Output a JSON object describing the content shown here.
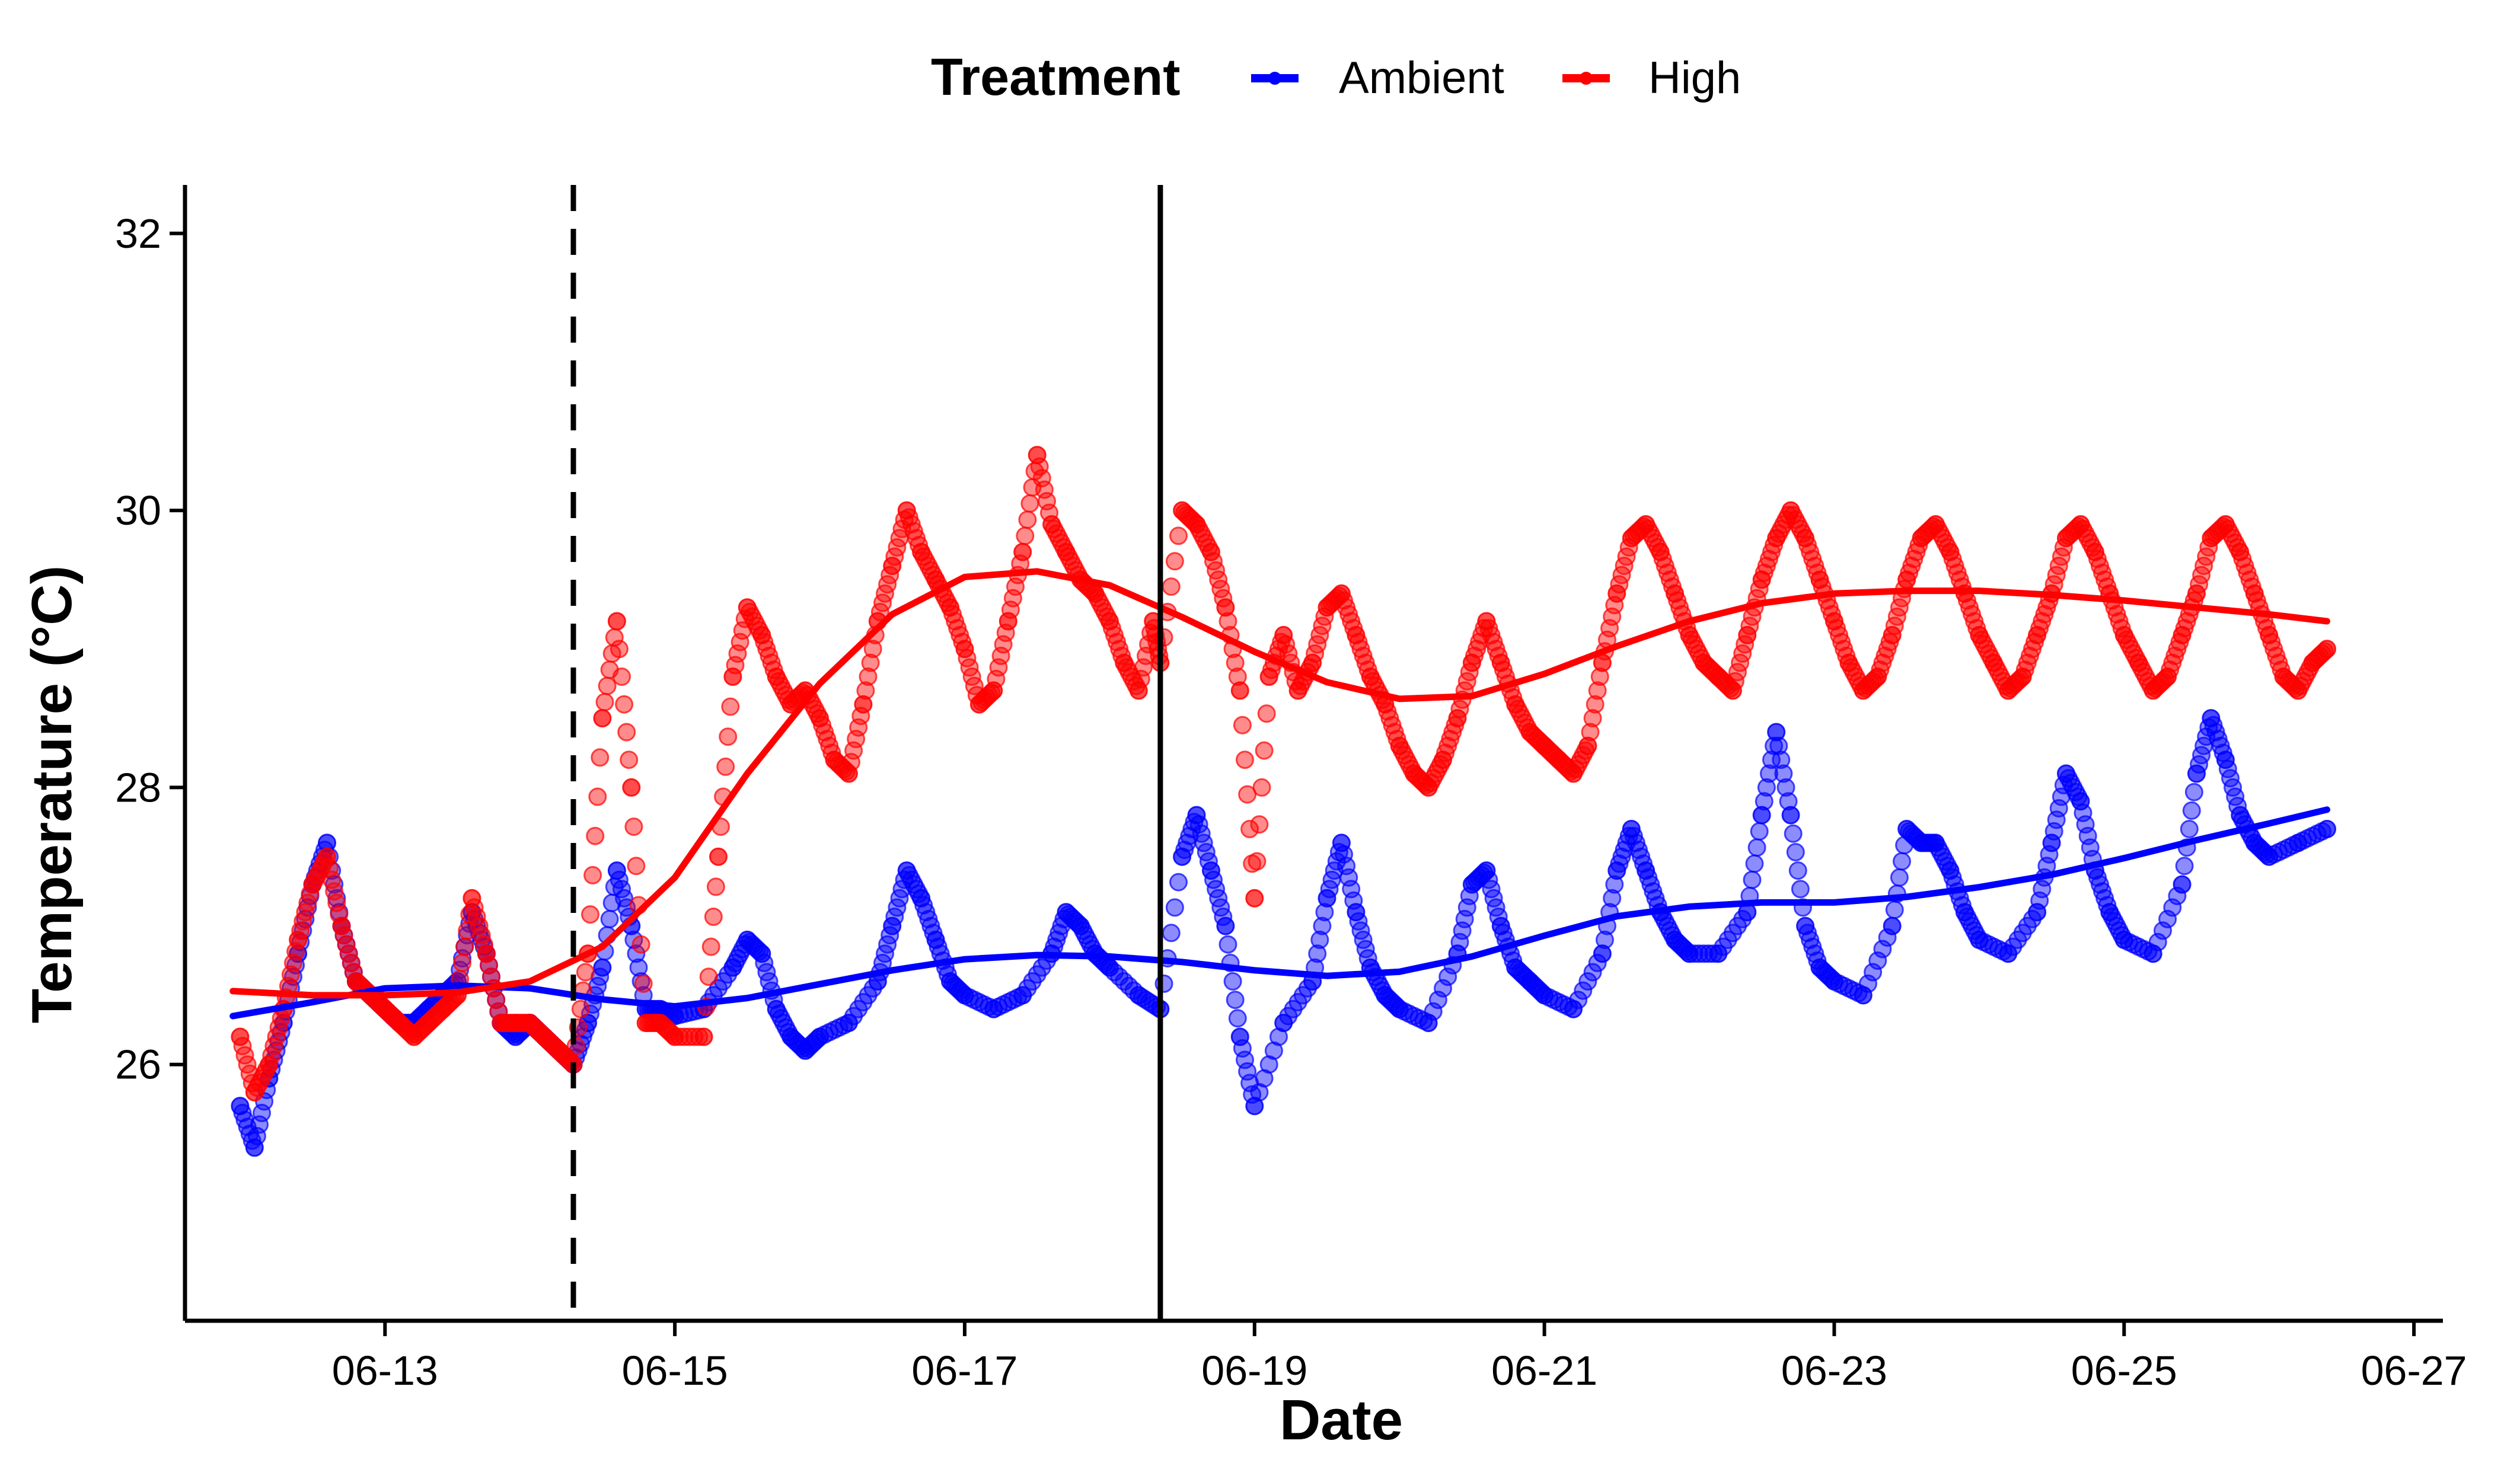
{
  "chart_data": {
    "type": "scatter",
    "title": "",
    "xlabel": "Date",
    "ylabel": "Temperature (°C)",
    "x_unit": "date",
    "xlim": [
      "06-11.62",
      "06-27.2"
    ],
    "ylim": [
      24.15,
      32.35
    ],
    "x_ticks": [
      "06-13",
      "06-15",
      "06-17",
      "06-19",
      "06-21",
      "06-23",
      "06-25",
      "06-27"
    ],
    "y_ticks": [
      26,
      28,
      30,
      32
    ],
    "grid": false,
    "legend": {
      "title": "Treatment",
      "position": "top",
      "entries": [
        "Ambient",
        "High"
      ]
    },
    "reference_lines": [
      {
        "x": "06-14.3",
        "style": "dashed"
      },
      {
        "x": "06-18.35",
        "style": "solid"
      }
    ],
    "series": [
      {
        "name": "Ambient",
        "color": "#0000ff",
        "points_x": [
          "06-12.0",
          "06-12.1",
          "06-12.2",
          "06-12.3",
          "06-12.4",
          "06-12.5",
          "06-12.6",
          "06-12.7",
          "06-12.8",
          "06-12.9",
          "06-13.0",
          "06-13.1",
          "06-13.2",
          "06-13.3",
          "06-13.4",
          "06-13.5",
          "06-13.6",
          "06-13.7",
          "06-13.8",
          "06-13.9",
          "06-14.0",
          "06-14.1",
          "06-14.2",
          "06-14.3",
          "06-14.4",
          "06-14.5",
          "06-14.6",
          "06-14.7",
          "06-14.8",
          "06-14.9",
          "06-15.0",
          "06-15.2",
          "06-15.4",
          "06-15.5",
          "06-15.6",
          "06-15.7",
          "06-15.8",
          "06-15.9",
          "06-16.0",
          "06-16.2",
          "06-16.4",
          "06-16.5",
          "06-16.6",
          "06-16.7",
          "06-16.8",
          "06-16.9",
          "06-17.0",
          "06-17.2",
          "06-17.4",
          "06-17.6",
          "06-17.7",
          "06-17.8",
          "06-17.9",
          "06-18.0",
          "06-18.2",
          "06-18.35",
          "06-18.5",
          "06-18.6",
          "06-18.7",
          "06-18.8",
          "06-18.9",
          "06-19.0",
          "06-19.2",
          "06-19.4",
          "06-19.5",
          "06-19.6",
          "06-19.7",
          "06-19.8",
          "06-19.9",
          "06-20.0",
          "06-20.2",
          "06-20.4",
          "06-20.5",
          "06-20.6",
          "06-20.7",
          "06-20.8",
          "06-20.9",
          "06-21.0",
          "06-21.2",
          "06-21.4",
          "06-21.5",
          "06-21.6",
          "06-21.7",
          "06-21.8",
          "06-21.9",
          "06-22.0",
          "06-22.2",
          "06-22.4",
          "06-22.5",
          "06-22.6",
          "06-22.7",
          "06-22.8",
          "06-22.9",
          "06-23.0",
          "06-23.2",
          "06-23.4",
          "06-23.5",
          "06-23.6",
          "06-23.7",
          "06-23.8",
          "06-23.9",
          "06-24.0",
          "06-24.2",
          "06-24.4",
          "06-24.5",
          "06-24.6",
          "06-24.7",
          "06-24.8",
          "06-24.9",
          "06-25.0",
          "06-25.2",
          "06-25.4",
          "06-25.5",
          "06-25.6",
          "06-25.7",
          "06-25.8",
          "06-25.9",
          "06-26.0",
          "06-26.2",
          "06-26.4"
        ],
        "points_y": [
          25.7,
          25.4,
          25.9,
          26.3,
          26.8,
          27.3,
          27.6,
          27.0,
          26.6,
          26.5,
          26.4,
          26.3,
          26.3,
          26.4,
          26.5,
          26.6,
          27.1,
          26.8,
          26.3,
          26.2,
          26.3,
          26.2,
          26.1,
          26.0,
          26.3,
          26.7,
          27.4,
          27.0,
          26.4,
          26.4,
          26.35,
          26.4,
          26.7,
          26.9,
          26.8,
          26.4,
          26.2,
          26.1,
          26.2,
          26.3,
          26.6,
          27.0,
          27.4,
          27.2,
          26.9,
          26.6,
          26.5,
          26.4,
          26.5,
          26.8,
          27.1,
          27.0,
          26.8,
          26.7,
          26.5,
          26.4,
          27.5,
          27.8,
          27.4,
          27.0,
          26.2,
          25.7,
          26.3,
          26.6,
          27.2,
          27.6,
          27.1,
          26.7,
          26.5,
          26.4,
          26.3,
          26.8,
          27.3,
          27.4,
          27.0,
          26.7,
          26.6,
          26.5,
          26.4,
          26.8,
          27.4,
          27.7,
          27.4,
          27.1,
          26.9,
          26.8,
          26.8,
          27.1,
          27.8,
          28.4,
          27.8,
          27.0,
          26.7,
          26.6,
          26.5,
          27.0,
          27.7,
          27.6,
          27.6,
          27.4,
          27.1,
          26.9,
          26.8,
          27.1,
          27.6,
          28.1,
          27.9,
          27.4,
          27.1,
          26.9,
          26.8,
          27.3,
          28.1,
          28.5,
          28.2,
          27.8,
          27.6,
          27.5,
          27.6,
          27.7
        ],
        "smooth_x": [
          "06-11.95",
          "06-12.5",
          "06-13.0",
          "06-13.5",
          "06-14.0",
          "06-14.5",
          "06-15.0",
          "06-15.5",
          "06-16.0",
          "06-16.5",
          "06-17.0",
          "06-17.5",
          "06-18.0",
          "06-18.5",
          "06-19.0",
          "06-19.5",
          "06-20.0",
          "06-20.5",
          "06-21.0",
          "06-21.5",
          "06-22.0",
          "06-22.5",
          "06-23.0",
          "06-23.5",
          "06-24.0",
          "06-24.5",
          "06-25.0",
          "06-25.5",
          "06-26.0",
          "06-26.4"
        ],
        "smooth_y": [
          26.35,
          26.45,
          26.55,
          26.57,
          26.55,
          26.47,
          26.42,
          26.48,
          26.58,
          26.68,
          26.76,
          26.79,
          26.78,
          26.74,
          26.68,
          26.64,
          26.67,
          26.78,
          26.93,
          27.07,
          27.14,
          27.17,
          27.17,
          27.21,
          27.28,
          27.37,
          27.49,
          27.62,
          27.74,
          27.84
        ]
      },
      {
        "name": "High",
        "color": "#ff0000",
        "points_x": [
          "06-12.0",
          "06-12.1",
          "06-12.2",
          "06-12.3",
          "06-12.4",
          "06-12.5",
          "06-12.6",
          "06-12.7",
          "06-12.8",
          "06-12.9",
          "06-13.0",
          "06-13.1",
          "06-13.2",
          "06-13.3",
          "06-13.4",
          "06-13.5",
          "06-13.6",
          "06-13.7",
          "06-13.8",
          "06-13.9",
          "06-14.0",
          "06-14.1",
          "06-14.2",
          "06-14.3",
          "06-14.4",
          "06-14.5",
          "06-14.6",
          "06-14.7",
          "06-14.8",
          "06-14.9",
          "06-15.0",
          "06-15.2",
          "06-15.3",
          "06-15.4",
          "06-15.5",
          "06-15.6",
          "06-15.7",
          "06-15.8",
          "06-15.9",
          "06-16.0",
          "06-16.1",
          "06-16.2",
          "06-16.3",
          "06-16.4",
          "06-16.5",
          "06-16.6",
          "06-16.7",
          "06-16.8",
          "06-16.9",
          "06-17.0",
          "06-17.1",
          "06-17.2",
          "06-17.3",
          "06-17.4",
          "06-17.5",
          "06-17.6",
          "06-17.7",
          "06-17.8",
          "06-17.9",
          "06-18.0",
          "06-18.1",
          "06-18.2",
          "06-18.3",
          "06-18.35",
          "06-18.5",
          "06-18.6",
          "06-18.7",
          "06-18.8",
          "06-18.9",
          "06-19.0",
          "06-19.1",
          "06-19.2",
          "06-19.3",
          "06-19.4",
          "06-19.5",
          "06-19.6",
          "06-19.7",
          "06-19.8",
          "06-19.9",
          "06-20.0",
          "06-20.1",
          "06-20.2",
          "06-20.3",
          "06-20.4",
          "06-20.5",
          "06-20.6",
          "06-20.7",
          "06-20.8",
          "06-20.9",
          "06-21.0",
          "06-21.1",
          "06-21.2",
          "06-21.3",
          "06-21.4",
          "06-21.5",
          "06-21.6",
          "06-21.7",
          "06-21.8",
          "06-21.9",
          "06-22.0",
          "06-22.1",
          "06-22.2",
          "06-22.3",
          "06-22.4",
          "06-22.5",
          "06-22.6",
          "06-22.7",
          "06-22.8",
          "06-22.9",
          "06-23.0",
          "06-23.1",
          "06-23.2",
          "06-23.3",
          "06-23.4",
          "06-23.5",
          "06-23.6",
          "06-23.7",
          "06-23.8",
          "06-23.9",
          "06-24.0",
          "06-24.1",
          "06-24.2",
          "06-24.3",
          "06-24.4",
          "06-24.5",
          "06-24.6",
          "06-24.7",
          "06-24.8",
          "06-24.9",
          "06-25.0",
          "06-25.1",
          "06-25.2",
          "06-25.3",
          "06-25.4",
          "06-25.5",
          "06-25.6",
          "06-25.7",
          "06-25.8",
          "06-25.9",
          "06-26.0",
          "06-26.1",
          "06-26.2",
          "06-26.3",
          "06-26.4"
        ],
        "points_y": [
          26.2,
          25.8,
          26.0,
          26.4,
          26.9,
          27.3,
          27.5,
          27.0,
          26.6,
          26.5,
          26.4,
          26.3,
          26.2,
          26.3,
          26.4,
          26.5,
          27.2,
          26.8,
          26.3,
          26.3,
          26.3,
          26.2,
          26.1,
          26.0,
          26.8,
          28.5,
          29.2,
          28.0,
          26.3,
          26.3,
          26.2,
          26.2,
          27.5,
          28.8,
          29.3,
          29.1,
          28.8,
          28.6,
          28.7,
          28.5,
          28.2,
          28.1,
          28.6,
          29.2,
          29.6,
          30.0,
          29.7,
          29.5,
          29.3,
          29.0,
          28.6,
          28.7,
          29.2,
          29.7,
          30.4,
          29.9,
          29.7,
          29.5,
          29.4,
          29.2,
          28.9,
          28.7,
          29.2,
          28.9,
          30.0,
          29.9,
          29.7,
          29.3,
          28.7,
          27.2,
          28.8,
          29.1,
          28.7,
          28.9,
          29.3,
          29.4,
          29.1,
          28.8,
          28.6,
          28.3,
          28.1,
          28.0,
          28.2,
          28.5,
          28.9,
          29.2,
          28.9,
          28.6,
          28.4,
          28.3,
          28.2,
          28.1,
          28.3,
          28.9,
          29.4,
          29.8,
          29.9,
          29.7,
          29.4,
          29.1,
          28.9,
          28.8,
          28.7,
          29.1,
          29.5,
          29.8,
          30.0,
          29.8,
          29.5,
          29.2,
          28.9,
          28.7,
          28.8,
          29.1,
          29.5,
          29.8,
          29.9,
          29.7,
          29.4,
          29.1,
          28.9,
          28.7,
          28.8,
          29.1,
          29.4,
          29.8,
          29.9,
          29.7,
          29.4,
          29.1,
          28.9,
          28.7,
          28.8,
          29.1,
          29.4,
          29.8,
          29.9,
          29.7,
          29.4,
          29.1,
          28.8,
          28.7,
          28.9,
          29.0
        ],
        "smooth_x": [
          "06-11.95",
          "06-12.5",
          "06-13.0",
          "06-13.5",
          "06-14.0",
          "06-14.5",
          "06-15.0",
          "06-15.5",
          "06-16.0",
          "06-16.5",
          "06-17.0",
          "06-17.5",
          "06-18.0",
          "06-18.5",
          "06-19.0",
          "06-19.5",
          "06-20.0",
          "06-20.5",
          "06-21.0",
          "06-21.5",
          "06-22.0",
          "06-22.5",
          "06-23.0",
          "06-23.5",
          "06-24.0",
          "06-24.5",
          "06-25.0",
          "06-25.5",
          "06-26.0",
          "06-26.4"
        ],
        "smooth_y": [
          26.53,
          26.5,
          26.5,
          26.52,
          26.6,
          26.85,
          27.35,
          28.1,
          28.75,
          29.25,
          29.52,
          29.56,
          29.46,
          29.23,
          28.98,
          28.76,
          28.64,
          28.66,
          28.82,
          29.02,
          29.2,
          29.33,
          29.4,
          29.42,
          29.42,
          29.39,
          29.35,
          29.3,
          29.25,
          29.2
        ]
      }
    ]
  }
}
